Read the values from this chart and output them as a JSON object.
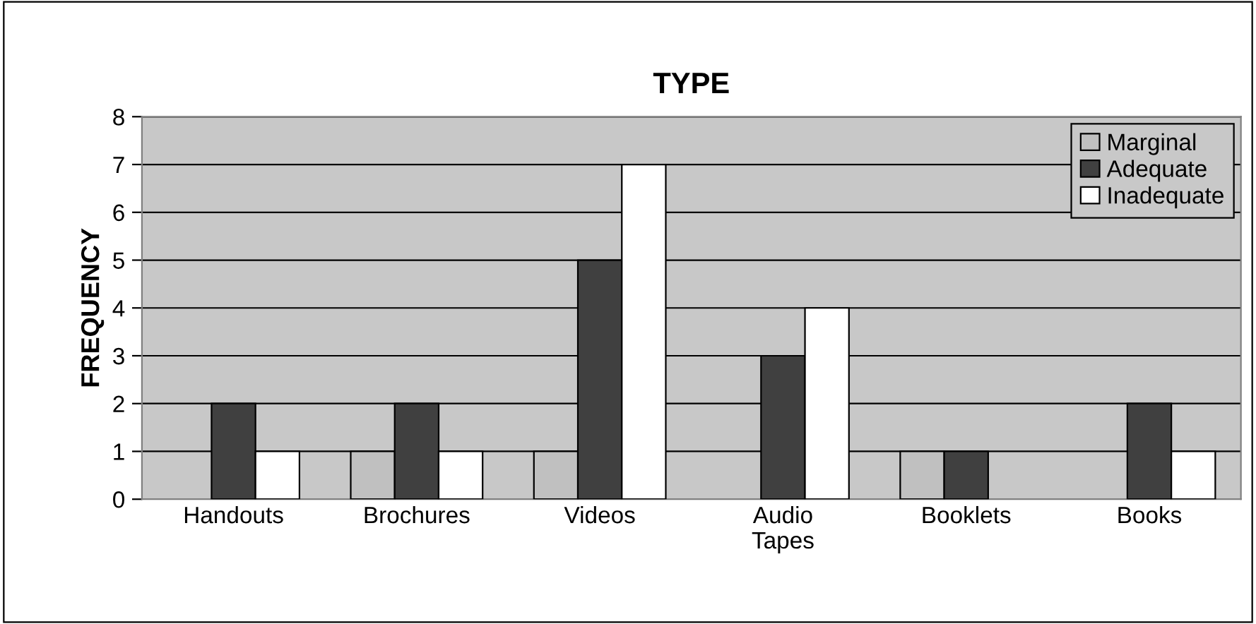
{
  "chart_data": {
    "type": "bar",
    "title": "TYPE",
    "ylabel": "FREQUENCY",
    "categories": [
      "Handouts",
      "Brochures",
      "Videos",
      "Audio\nTapes",
      "Booklets",
      "Books"
    ],
    "series": [
      {
        "name": "Marginal",
        "color": "#c0c0c0",
        "values": [
          null,
          1,
          1,
          null,
          1,
          null
        ]
      },
      {
        "name": "Adequate",
        "color": "#404040",
        "values": [
          2,
          2,
          5,
          3,
          1,
          2
        ]
      },
      {
        "name": "Inadequate",
        "color": "#ffffff",
        "values": [
          1,
          1,
          7,
          4,
          null,
          1
        ]
      }
    ],
    "ylim": [
      0,
      8
    ],
    "yticks": [
      0,
      1,
      2,
      3,
      4,
      5,
      6,
      7,
      8
    ],
    "grid": "y",
    "legend": "top right"
  }
}
